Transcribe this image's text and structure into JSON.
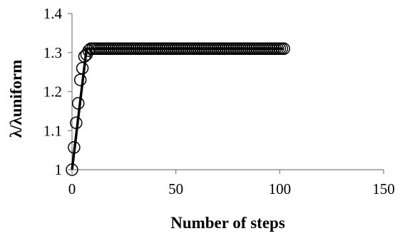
{
  "chart_data": {
    "type": "scatter",
    "xlabel": "Number of steps",
    "ylabel": "λ/λuniform",
    "xlim": [
      0,
      150
    ],
    "ylim": [
      1,
      1.4
    ],
    "x_ticks": [
      "0",
      "50",
      "100",
      "150"
    ],
    "y_ticks": [
      "1",
      "1.1",
      "1.2",
      "1.3",
      "1.4"
    ],
    "grid": false,
    "legend": "none",
    "series": [
      {
        "marker": "open-circle",
        "x": [
          0,
          1,
          2,
          3,
          4,
          5,
          6,
          7,
          8,
          9,
          10,
          11,
          12,
          13,
          14,
          15,
          16,
          17,
          18,
          19,
          20,
          21,
          22,
          23,
          24,
          25,
          26,
          27,
          28,
          29,
          30,
          31,
          32,
          33,
          34,
          35,
          36,
          37,
          38,
          39,
          40,
          41,
          42,
          43,
          44,
          45,
          46,
          47,
          48,
          49,
          50,
          51,
          52,
          53,
          54,
          55,
          56,
          57,
          58,
          59,
          60,
          61,
          62,
          63,
          64,
          65,
          66,
          67,
          68,
          69,
          70,
          71,
          72,
          73,
          74,
          75,
          76,
          77,
          78,
          79,
          80,
          81,
          82,
          83,
          84,
          85,
          86,
          87,
          88,
          89,
          90,
          91,
          92,
          93,
          94,
          95,
          96,
          97,
          98,
          99,
          100,
          101,
          102
        ],
        "y": [
          1,
          1.057,
          1.12,
          1.17,
          1.23,
          1.26,
          1.29,
          1.295,
          1.305,
          1.31,
          1.31,
          1.31,
          1.31,
          1.31,
          1.31,
          1.31,
          1.31,
          1.31,
          1.31,
          1.31,
          1.31,
          1.31,
          1.31,
          1.31,
          1.31,
          1.31,
          1.31,
          1.31,
          1.31,
          1.31,
          1.31,
          1.31,
          1.31,
          1.31,
          1.31,
          1.31,
          1.31,
          1.31,
          1.31,
          1.31,
          1.31,
          1.31,
          1.31,
          1.31,
          1.31,
          1.31,
          1.31,
          1.31,
          1.31,
          1.31,
          1.31,
          1.31,
          1.31,
          1.31,
          1.31,
          1.31,
          1.31,
          1.31,
          1.31,
          1.31,
          1.31,
          1.31,
          1.31,
          1.31,
          1.31,
          1.31,
          1.31,
          1.31,
          1.31,
          1.31,
          1.31,
          1.31,
          1.31,
          1.31,
          1.31,
          1.31,
          1.31,
          1.31,
          1.31,
          1.31,
          1.31,
          1.31,
          1.31,
          1.31,
          1.31,
          1.31,
          1.31,
          1.31,
          1.31,
          1.31,
          1.31,
          1.31,
          1.31,
          1.31,
          1.31,
          1.31,
          1.31,
          1.31,
          1.31,
          1.31,
          1.31,
          1.31,
          1.31
        ]
      },
      {
        "marker": "none",
        "line": "solid",
        "x": [
          0,
          7,
          102
        ],
        "y": [
          1,
          1.31,
          1.31
        ]
      }
    ]
  }
}
